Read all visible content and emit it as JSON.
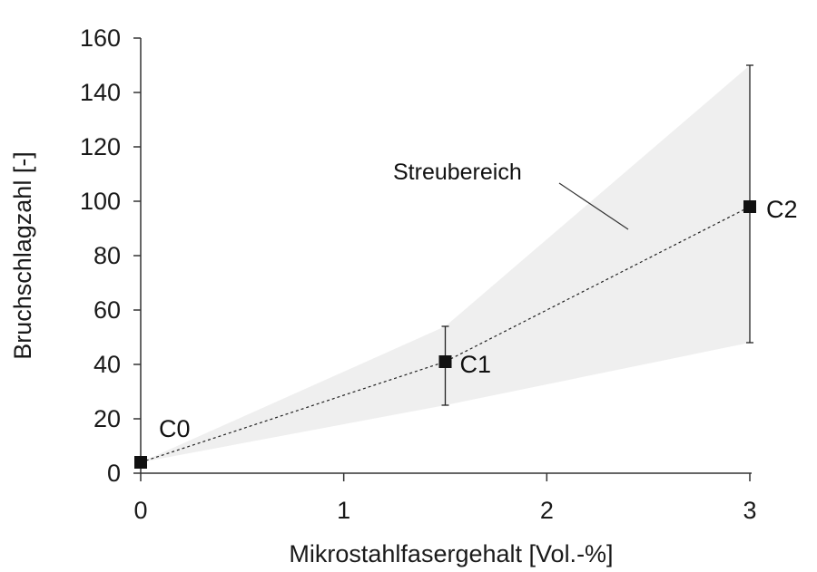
{
  "chart_data": {
    "type": "scatter",
    "title": "",
    "xlabel": "Mikrostahlfasergehalt [Vol.-%]",
    "ylabel": "Bruchschlagzahl [-]",
    "xlim": [
      0,
      3
    ],
    "ylim": [
      0,
      160
    ],
    "xticks": [
      "0",
      "1",
      "2",
      "3"
    ],
    "yticks": [
      "0",
      "20",
      "40",
      "60",
      "80",
      "100",
      "120",
      "140",
      "160"
    ],
    "grid": false,
    "series": [
      {
        "points": [
          {
            "label": "C0",
            "x": 0,
            "y": 4,
            "err_low": 4,
            "err_high": 4
          },
          {
            "label": "C1",
            "x": 1.5,
            "y": 41,
            "err_low": 25,
            "err_high": 54
          },
          {
            "label": "C2",
            "x": 3,
            "y": 98,
            "err_low": 48,
            "err_high": 150
          }
        ]
      }
    ],
    "band": {
      "label": "Streubereich",
      "upper": [
        [
          0,
          4
        ],
        [
          1.5,
          54
        ],
        [
          3,
          150
        ]
      ],
      "lower": [
        [
          0,
          4
        ],
        [
          1.5,
          25
        ],
        [
          3,
          48
        ]
      ]
    },
    "colors": {
      "band": "#efefef",
      "marker": "#111111",
      "line": "#222222",
      "axis": "#333333"
    }
  }
}
